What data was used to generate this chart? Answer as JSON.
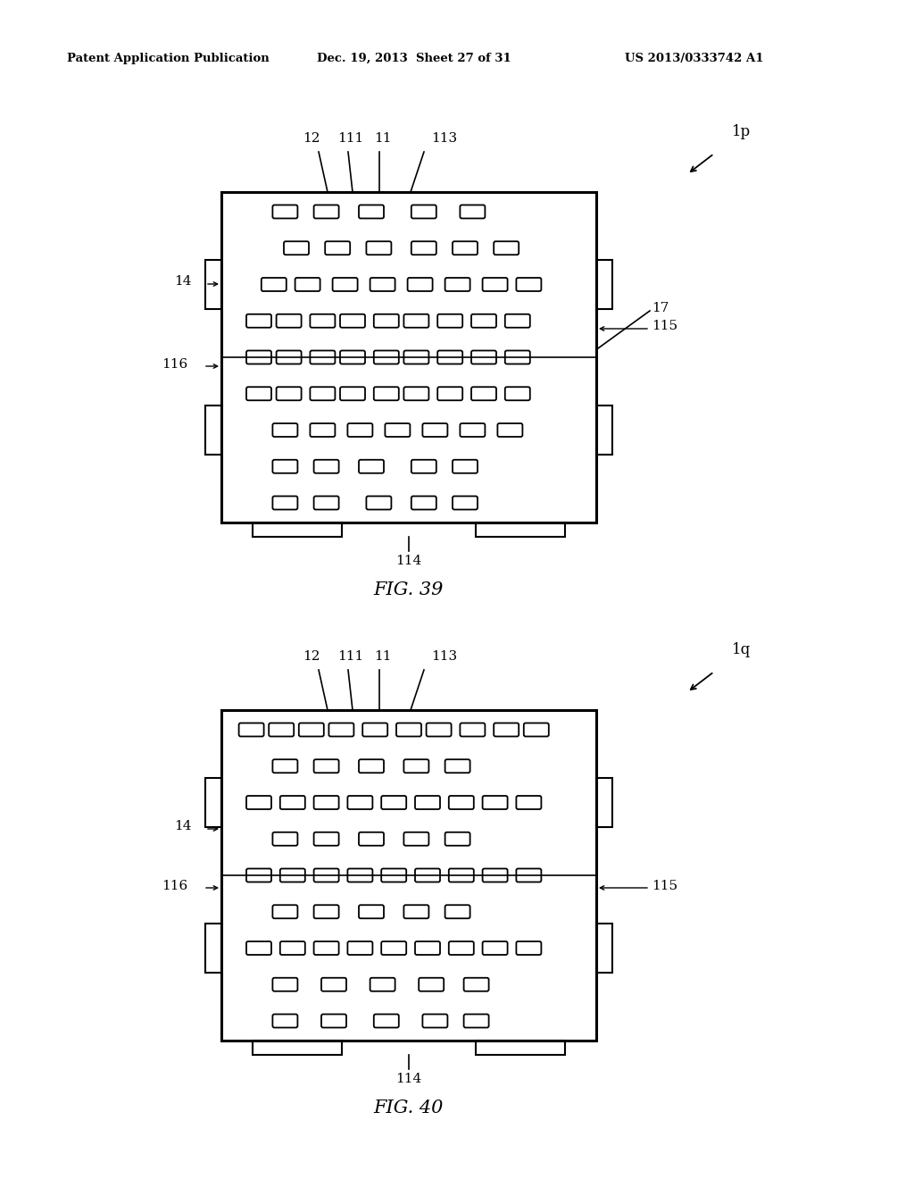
{
  "bg_color": "#ffffff",
  "line_color": "#000000",
  "header_left": "Patent Application Publication",
  "header_center": "Dec. 19, 2013  Sheet 27 of 31",
  "header_right": "US 2013/0333742 A1",
  "fig39_label": "FIG. 39",
  "fig40_label": "FIG. 40",
  "fig39_rows": [
    [
      0.17,
      0.28,
      0.4,
      0.54,
      0.67
    ],
    [
      0.2,
      0.31,
      0.42,
      0.54,
      0.65,
      0.76
    ],
    [
      0.14,
      0.23,
      0.33,
      0.43,
      0.53,
      0.63,
      0.73,
      0.82
    ],
    [
      0.1,
      0.18,
      0.27,
      0.35,
      0.44,
      0.52,
      0.61,
      0.7,
      0.79
    ],
    [
      0.1,
      0.18,
      0.27,
      0.35,
      0.44,
      0.52,
      0.61,
      0.7,
      0.79
    ],
    [
      0.1,
      0.18,
      0.27,
      0.35,
      0.44,
      0.52,
      0.61,
      0.7,
      0.79
    ],
    [
      0.17,
      0.27,
      0.37,
      0.47,
      0.57,
      0.67,
      0.77
    ],
    [
      0.17,
      0.28,
      0.4,
      0.54,
      0.65
    ],
    [
      0.17,
      0.28,
      0.42,
      0.54,
      0.65
    ]
  ],
  "fig40_rows": [
    [
      0.08,
      0.16,
      0.24,
      0.32,
      0.41,
      0.5,
      0.58,
      0.67,
      0.76,
      0.84
    ],
    [
      0.17,
      0.28,
      0.4,
      0.52,
      0.63
    ],
    [
      0.1,
      0.19,
      0.28,
      0.37,
      0.46,
      0.55,
      0.64,
      0.73,
      0.82
    ],
    [
      0.17,
      0.28,
      0.4,
      0.52,
      0.63
    ],
    [
      0.1,
      0.19,
      0.28,
      0.37,
      0.46,
      0.55,
      0.64,
      0.73,
      0.82
    ],
    [
      0.17,
      0.28,
      0.4,
      0.52,
      0.63
    ],
    [
      0.1,
      0.19,
      0.28,
      0.37,
      0.46,
      0.55,
      0.64,
      0.73,
      0.82
    ],
    [
      0.17,
      0.3,
      0.43,
      0.56,
      0.68
    ],
    [
      0.17,
      0.3,
      0.44,
      0.57,
      0.68
    ]
  ]
}
